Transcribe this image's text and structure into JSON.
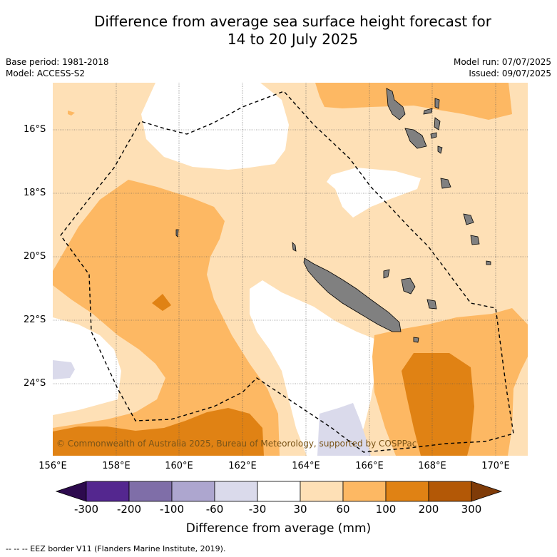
{
  "title": {
    "line1": "Difference from average sea surface height forecast for",
    "line2": "14 to 20 July 2025"
  },
  "meta": {
    "base_period": "Base period: 1981-2018",
    "model": "Model: ACCESS-S2",
    "model_run": "Model run: 07/07/2025",
    "issued": "Issued: 09/07/2025"
  },
  "map": {
    "region": "New Caledonia and Vanuatu",
    "lon_range": [
      156,
      171
    ],
    "lat_range": [
      -26.3,
      -14.5
    ],
    "lat_ticks": [
      "16°S",
      "18°S",
      "20°S",
      "22°S",
      "24°S"
    ],
    "lon_ticks": [
      "156°E",
      "158°E",
      "160°E",
      "162°E",
      "164°E",
      "166°E",
      "168°E",
      "170°E"
    ],
    "copyright": "© Commonwealth of Australia 2025, Bureau of Meteorology, supported by COSPPac",
    "land_color": "#808080",
    "eez_line_style": "dashed"
  },
  "colorbar": {
    "ticks": [
      "-300",
      "-200",
      "-100",
      "-60",
      "-30",
      "30",
      "60",
      "100",
      "200",
      "300"
    ],
    "colors": [
      "#2d0a4e",
      "#54278f",
      "#7f6ea8",
      "#ada6cf",
      "#dadaeb",
      "#ffffff",
      "#fee0b6",
      "#fdb863",
      "#e08214",
      "#b35806",
      "#7f3b08"
    ],
    "title": "Difference from average (mm)"
  },
  "footnote": "-- -- -- EEZ border V11 (Flanders Marine Institute, 2019)."
}
